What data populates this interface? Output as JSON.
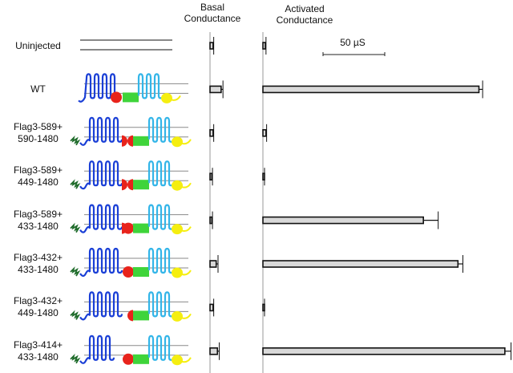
{
  "chart_data": {
    "type": "bar",
    "orientation": "horizontal",
    "unit": "µS",
    "scale_bar_label": "50 µS",
    "scale_bar_value": 50,
    "panels": [
      {
        "title": "Basal Conductance",
        "key": "basal"
      },
      {
        "title": "Activated Conductance",
        "key": "activated"
      }
    ],
    "categories": [
      "Uninjected",
      "WT",
      "Flag3-589+\n590-1480",
      "Flag3-589+\n449-1480",
      "Flag3-589+\n433-1480",
      "Flag3-432+\n433-1480",
      "Flag3-432+\n449-1480",
      "Flag3-414+\n433-1480"
    ],
    "series": [
      {
        "key": "basal",
        "values": [
          2.5,
          9,
          2.5,
          1.5,
          1.5,
          5,
          2.5,
          6
        ],
        "errors": [
          0.5,
          1.5,
          0.5,
          0.5,
          0.5,
          1.5,
          0.5,
          1.5
        ]
      },
      {
        "key": "activated",
        "values": [
          2,
          175,
          2.5,
          1,
          130,
          158,
          1,
          196
        ],
        "errors": [
          0.5,
          3,
          0.5,
          0.3,
          12,
          4,
          0.3,
          5
        ]
      }
    ],
    "bar_fill": "#d9d9d9"
  },
  "constructs": [
    {
      "variant": "none"
    },
    {
      "variant": "wt"
    },
    {
      "variant": "split",
      "flag": true,
      "left_red": "half",
      "right_red": "half",
      "n_loops": 4
    },
    {
      "variant": "split",
      "flag": true,
      "left_red": "half",
      "right_red": "d",
      "n_loops": 4
    },
    {
      "variant": "split",
      "flag": true,
      "left_red": "half",
      "right_red": "full",
      "n_loops": 4
    },
    {
      "variant": "split",
      "flag": true,
      "left_red": "none",
      "right_red": "full",
      "n_loops": 4
    },
    {
      "variant": "split",
      "flag": true,
      "left_red": "none",
      "right_red": "d",
      "n_loops": 4
    },
    {
      "variant": "split",
      "flag": true,
      "left_red": "none",
      "right_red": "full",
      "n_loops": 3
    }
  ],
  "colors": {
    "tm_n": "#1a3fd6",
    "tm_c": "#33b5e8",
    "nbd1": "#e8231b",
    "r_domain": "#3fd43a",
    "nbd2": "#f5ee10",
    "flag": "#1e6b2a",
    "membrane": "#8a8a8a"
  }
}
